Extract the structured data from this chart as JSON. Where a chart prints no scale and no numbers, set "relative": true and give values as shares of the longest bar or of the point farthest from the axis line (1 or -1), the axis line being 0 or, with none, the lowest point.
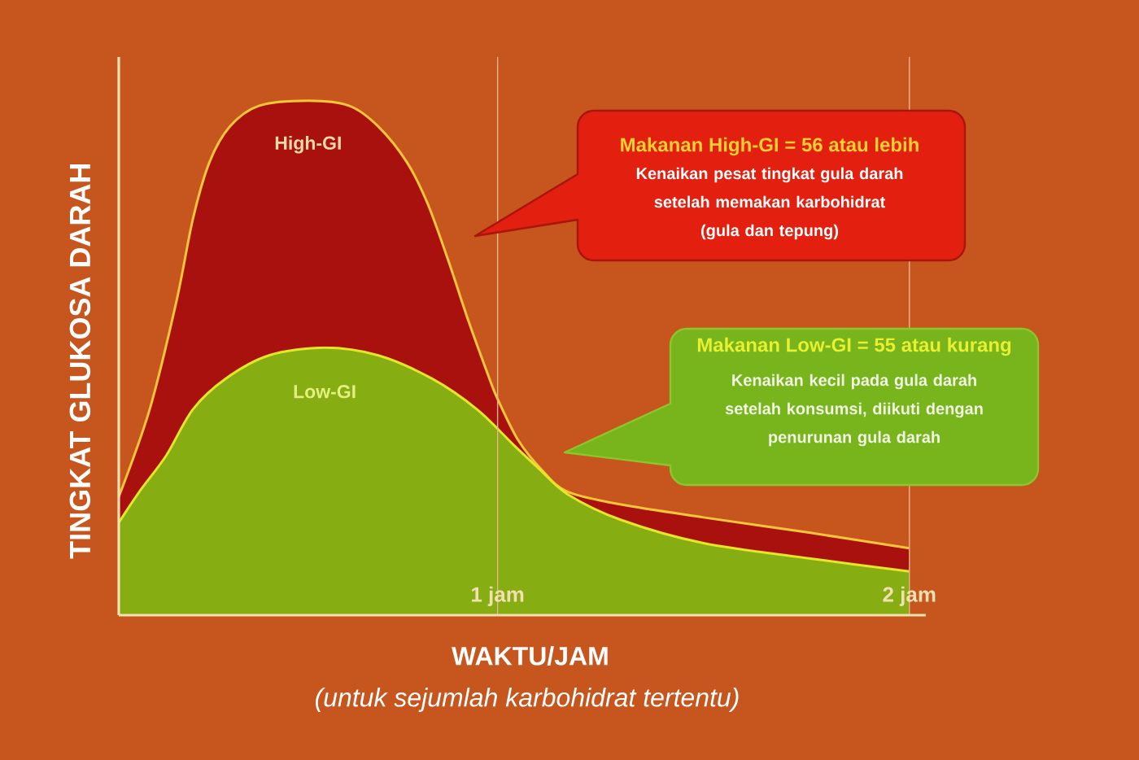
{
  "chart_data": {
    "type": "area",
    "relative": true,
    "xlabel": "WAKTU/JAM",
    "ylabel": "TINGKAT GLUKOSA DARAH",
    "xlim": [
      0.08,
      2.04
    ],
    "xticks": [
      {
        "value": 1,
        "label": "1 jam"
      },
      {
        "value": 2,
        "label": "2 jam"
      }
    ],
    "grid": "x",
    "series": [
      {
        "name": "High-GI",
        "color": "#a8110e",
        "x": [
          0.08,
          0.155,
          0.22,
          0.26,
          0.3,
          0.35,
          0.42,
          0.54,
          0.64,
          0.71,
          0.78,
          0.83,
          0.88,
          0.93,
          0.98,
          1.0,
          1.05,
          1.11,
          1.17,
          1.3,
          1.5,
          1.76,
          2.0
        ],
        "values": [
          0.23,
          0.4,
          0.61,
          0.77,
          0.88,
          0.95,
          0.99,
          1.0,
          0.99,
          0.95,
          0.88,
          0.8,
          0.69,
          0.57,
          0.46,
          0.42,
          0.34,
          0.28,
          0.24,
          0.215,
          0.19,
          0.16,
          0.13
        ]
      },
      {
        "name": "Low-GI",
        "color": "#86ad12",
        "x": [
          0.08,
          0.13,
          0.195,
          0.26,
          0.34,
          0.445,
          0.58,
          0.71,
          0.84,
          0.95,
          1.04,
          1.1,
          1.17,
          1.3,
          1.5,
          1.76,
          2.0
        ],
        "values": [
          0.18,
          0.24,
          0.31,
          0.4,
          0.46,
          0.505,
          0.52,
          0.505,
          0.46,
          0.4,
          0.33,
          0.285,
          0.235,
          0.185,
          0.14,
          0.11,
          0.085
        ]
      }
    ],
    "annotations": [
      "Makanan High-GI = 56 atau lebih",
      "Kenaikan pesat tingkat gula darah\nsetelah memakan karbohidrat\n(gula dan tepung)",
      "Makanan Low-GI = 55 atau kurang",
      "Kenaikan kecil pada gula darah\nsetelah konsumsi, diikuti dengan\npenurunan gula darah",
      "(untuk sejumlah karbohidrat tertentu)"
    ]
  }
}
